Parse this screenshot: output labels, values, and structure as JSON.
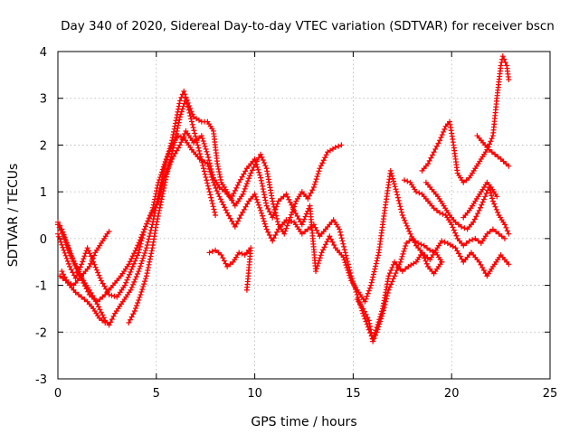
{
  "chart_data": {
    "type": "scatter",
    "title": "Day 340 of 2020, Sidereal Day-to-day VTEC variation (SDTVAR) for receiver bscn",
    "xlabel": "GPS time / hours",
    "ylabel": "SDTVAR / TECUs",
    "xlim": [
      0,
      25
    ],
    "ylim": [
      -3,
      4
    ],
    "xticks": [
      "0",
      "5",
      "10",
      "15",
      "20",
      "25"
    ],
    "yticks": [
      "-3",
      "-2",
      "-1",
      "0",
      "1",
      "2",
      "3",
      "4"
    ],
    "grid": true,
    "marker": "plus",
    "color": "#ff0000",
    "series": [
      {
        "points": [
          [
            0,
            0.35
          ],
          [
            0.2,
            0.2
          ],
          [
            0.5,
            -0.15
          ],
          [
            0.8,
            -0.5
          ],
          [
            1.0,
            -0.7
          ],
          [
            1.3,
            -0.9
          ],
          [
            1.6,
            -1.1
          ],
          [
            2.0,
            -1.4
          ],
          [
            2.4,
            -1.75
          ],
          [
            2.6,
            -1.85
          ],
          [
            2.9,
            -1.6
          ],
          [
            3.3,
            -1.35
          ],
          [
            3.7,
            -1.1
          ],
          [
            4.1,
            -0.7
          ],
          [
            4.5,
            -0.2
          ],
          [
            4.8,
            0.3
          ],
          [
            5.1,
            0.9
          ],
          [
            5.4,
            1.5
          ],
          [
            5.8,
            2.1
          ],
          [
            6.2,
            2.95
          ],
          [
            6.4,
            3.15
          ],
          [
            6.6,
            2.9
          ],
          [
            6.9,
            2.6
          ],
          [
            7.3,
            2.5
          ],
          [
            7.6,
            2.5
          ],
          [
            7.9,
            2.3
          ],
          [
            8.1,
            1.6
          ],
          [
            8.3,
            1.2
          ],
          [
            8.6,
            1.0
          ],
          [
            9.0,
            0.7
          ],
          [
            9.4,
            0.95
          ],
          [
            9.8,
            1.4
          ],
          [
            10.1,
            1.65
          ],
          [
            10.3,
            1.8
          ],
          [
            10.6,
            1.5
          ],
          [
            10.9,
            0.8
          ],
          [
            11.2,
            0.3
          ],
          [
            11.5,
            0.1
          ],
          [
            11.8,
            0.45
          ],
          [
            12.1,
            0.8
          ],
          [
            12.4,
            1.0
          ],
          [
            12.7,
            0.85
          ],
          [
            13.0,
            1.1
          ],
          [
            13.3,
            1.5
          ],
          [
            13.7,
            1.85
          ],
          [
            14.1,
            1.95
          ],
          [
            14.4,
            2.0
          ]
        ]
      },
      {
        "points": [
          [
            0,
            0.3
          ],
          [
            0.3,
            0.05
          ],
          [
            0.6,
            -0.3
          ],
          [
            1.0,
            -0.65
          ],
          [
            1.3,
            -0.95
          ],
          [
            1.6,
            -1.2
          ],
          [
            2.0,
            -1.35
          ],
          [
            2.4,
            -1.2
          ],
          [
            2.8,
            -1.0
          ],
          [
            3.2,
            -0.8
          ],
          [
            3.6,
            -0.55
          ],
          [
            4.0,
            -0.2
          ],
          [
            4.4,
            0.2
          ],
          [
            4.8,
            0.6
          ],
          [
            5.1,
            1.2
          ],
          [
            5.5,
            1.7
          ],
          [
            5.8,
            2.0
          ],
          [
            6.1,
            2.2
          ],
          [
            6.4,
            2.15
          ],
          [
            6.8,
            1.9
          ],
          [
            7.2,
            1.7
          ],
          [
            7.6,
            1.6
          ],
          [
            7.9,
            1.2
          ],
          [
            8.2,
            0.9
          ],
          [
            8.6,
            0.55
          ],
          [
            9.0,
            0.25
          ],
          [
            9.3,
            0.5
          ],
          [
            9.7,
            0.8
          ],
          [
            10.0,
            0.95
          ],
          [
            10.3,
            0.6
          ],
          [
            10.6,
            0.2
          ],
          [
            10.9,
            -0.05
          ],
          [
            11.2,
            0.2
          ],
          [
            11.6,
            0.4
          ],
          [
            12.0,
            0.35
          ],
          [
            12.4,
            0.1
          ],
          [
            12.7,
            0.2
          ],
          [
            13.0,
            0.3
          ],
          [
            13.3,
            0.05
          ],
          [
            13.6,
            0.2
          ],
          [
            14.0,
            0.4
          ],
          [
            14.3,
            0.2
          ],
          [
            14.6,
            -0.3
          ],
          [
            14.9,
            -0.8
          ],
          [
            15.2,
            -1.2
          ],
          [
            15.5,
            -1.6
          ],
          [
            15.8,
            -1.95
          ],
          [
            16.0,
            -2.15
          ],
          [
            16.2,
            -1.9
          ],
          [
            16.5,
            -1.5
          ],
          [
            16.8,
            -0.8
          ],
          [
            17.1,
            -0.5
          ],
          [
            17.5,
            -0.7
          ],
          [
            17.8,
            -0.6
          ],
          [
            18.2,
            -0.5
          ],
          [
            18.5,
            -0.3
          ],
          [
            18.9,
            -0.45
          ],
          [
            19.2,
            -0.25
          ],
          [
            19.5,
            -0.05
          ],
          [
            19.8,
            -0.1
          ],
          [
            20.2,
            -0.2
          ],
          [
            20.6,
            -0.5
          ],
          [
            21.0,
            -0.3
          ],
          [
            21.4,
            -0.5
          ],
          [
            21.8,
            -0.8
          ],
          [
            22.1,
            -0.6
          ],
          [
            22.5,
            -0.35
          ],
          [
            22.9,
            -0.55
          ]
        ]
      },
      {
        "points": [
          [
            0,
            0.1
          ],
          [
            0.3,
            -0.25
          ],
          [
            0.6,
            -0.6
          ],
          [
            0.9,
            -0.85
          ],
          [
            1.2,
            -0.55
          ],
          [
            1.5,
            -0.2
          ],
          [
            1.8,
            -0.5
          ],
          [
            2.2,
            -0.9
          ],
          [
            2.6,
            -1.2
          ],
          [
            3.0,
            -1.25
          ],
          [
            3.4,
            -1.0
          ],
          [
            3.8,
            -0.6
          ],
          [
            4.1,
            -0.3
          ],
          [
            4.4,
            0.2
          ],
          [
            4.7,
            0.5
          ],
          [
            5.1,
            0.8
          ],
          [
            5.4,
            1.3
          ],
          [
            5.8,
            1.7
          ],
          [
            6.2,
            2.0
          ],
          [
            6.5,
            2.3
          ],
          [
            6.9,
            2.05
          ],
          [
            7.3,
            2.2
          ],
          [
            7.6,
            1.8
          ],
          [
            7.9,
            1.3
          ],
          [
            8.2,
            1.1
          ],
          [
            8.5,
            1.0
          ],
          [
            8.8,
            0.85
          ],
          [
            9.2,
            1.2
          ],
          [
            9.6,
            1.5
          ],
          [
            10.0,
            1.7
          ],
          [
            10.3,
            1.3
          ],
          [
            10.6,
            0.7
          ],
          [
            10.9,
            0.45
          ],
          [
            11.2,
            0.8
          ],
          [
            11.6,
            0.95
          ],
          [
            12.0,
            0.6
          ],
          [
            12.4,
            0.3
          ],
          [
            12.8,
            0.7
          ],
          [
            13.1,
            -0.7
          ],
          [
            13.4,
            -0.3
          ],
          [
            13.8,
            0.05
          ],
          [
            14.1,
            -0.2
          ],
          [
            14.5,
            -0.4
          ],
          [
            14.9,
            -0.9
          ],
          [
            15.2,
            -1.1
          ],
          [
            15.6,
            -1.35
          ],
          [
            15.9,
            -1.0
          ],
          [
            16.3,
            -0.3
          ],
          [
            16.6,
            0.6
          ],
          [
            16.9,
            1.45
          ],
          [
            17.2,
            1.0
          ],
          [
            17.5,
            0.5
          ],
          [
            17.9,
            0.1
          ],
          [
            18.2,
            -0.15
          ],
          [
            18.5,
            -0.3
          ],
          [
            18.8,
            -0.6
          ],
          [
            19.1,
            -0.75
          ],
          [
            19.5,
            -0.5
          ]
        ]
      },
      {
        "points": [
          [
            0.1,
            -0.8
          ],
          [
            0.4,
            -0.9
          ],
          [
            0.8,
            -1.0
          ],
          [
            1.2,
            -0.8
          ],
          [
            1.6,
            -0.6
          ],
          [
            1.9,
            -0.3
          ],
          [
            2.2,
            -0.1
          ],
          [
            2.5,
            0.1
          ],
          [
            2.6,
            0.15
          ]
        ]
      },
      {
        "points": [
          [
            0.2,
            -0.7
          ],
          [
            0.5,
            -0.95
          ],
          [
            0.9,
            -1.15
          ],
          [
            1.2,
            -1.25
          ],
          [
            1.5,
            -1.35
          ],
          [
            1.8,
            -1.5
          ],
          [
            2.1,
            -1.7
          ],
          [
            2.4,
            -1.8
          ]
        ]
      },
      {
        "points": [
          [
            3.6,
            -1.8
          ],
          [
            3.9,
            -1.55
          ],
          [
            4.2,
            -1.2
          ],
          [
            4.5,
            -0.8
          ],
          [
            4.8,
            -0.2
          ],
          [
            5.0,
            0.3
          ],
          [
            5.3,
            0.9
          ],
          [
            5.6,
            1.5
          ],
          [
            5.9,
            2.0
          ],
          [
            6.2,
            2.6
          ],
          [
            6.5,
            3.0
          ],
          [
            6.8,
            2.5
          ],
          [
            7.1,
            2.0
          ],
          [
            7.4,
            1.5
          ],
          [
            7.7,
            1.0
          ],
          [
            8.0,
            0.5
          ]
        ]
      },
      {
        "points": [
          [
            7.7,
            -0.3
          ],
          [
            8.0,
            -0.25
          ],
          [
            8.3,
            -0.35
          ],
          [
            8.6,
            -0.6
          ],
          [
            8.9,
            -0.5
          ],
          [
            9.2,
            -0.3
          ],
          [
            9.5,
            -0.35
          ],
          [
            9.8,
            -0.2
          ],
          [
            9.6,
            -1.1
          ]
        ]
      },
      {
        "points": [
          [
            15.2,
            -1.3
          ],
          [
            15.5,
            -1.5
          ],
          [
            15.8,
            -1.75
          ],
          [
            16.0,
            -2.2
          ],
          [
            16.2,
            -2.0
          ],
          [
            16.5,
            -1.6
          ],
          [
            16.8,
            -1.1
          ],
          [
            17.1,
            -0.8
          ],
          [
            17.4,
            -0.5
          ],
          [
            17.7,
            -0.1
          ],
          [
            18.0,
            0.0
          ],
          [
            18.3,
            -0.1
          ],
          [
            18.6,
            -0.15
          ],
          [
            18.9,
            -0.25
          ],
          [
            19.2,
            -0.3
          ],
          [
            19.5,
            -0.5
          ]
        ]
      },
      {
        "points": [
          [
            17.6,
            1.25
          ],
          [
            17.9,
            1.2
          ],
          [
            18.2,
            1.0
          ],
          [
            18.5,
            0.95
          ],
          [
            18.8,
            0.8
          ],
          [
            19.1,
            0.65
          ],
          [
            19.4,
            0.55
          ],
          [
            19.7,
            0.5
          ],
          [
            20.0,
            0.3
          ],
          [
            20.3,
            0.0
          ],
          [
            20.6,
            -0.15
          ],
          [
            20.9,
            -0.05
          ],
          [
            21.2,
            0.0
          ],
          [
            21.5,
            -0.1
          ],
          [
            21.8,
            0.1
          ],
          [
            22.1,
            0.2
          ],
          [
            22.4,
            0.1
          ],
          [
            22.7,
            0.0
          ]
        ]
      },
      {
        "points": [
          [
            18.5,
            1.45
          ],
          [
            18.8,
            1.6
          ],
          [
            19.1,
            1.85
          ],
          [
            19.4,
            2.1
          ],
          [
            19.7,
            2.4
          ],
          [
            19.9,
            2.5
          ],
          [
            20.1,
            2.0
          ],
          [
            20.3,
            1.4
          ],
          [
            20.6,
            1.2
          ],
          [
            20.9,
            1.3
          ],
          [
            21.2,
            1.5
          ],
          [
            21.5,
            1.7
          ],
          [
            21.8,
            1.9
          ],
          [
            22.1,
            2.2
          ],
          [
            22.3,
            3.0
          ],
          [
            22.5,
            3.7
          ],
          [
            22.6,
            3.9
          ],
          [
            22.8,
            3.7
          ],
          [
            22.9,
            3.4
          ]
        ]
      },
      {
        "points": [
          [
            18.7,
            1.2
          ],
          [
            19.0,
            1.05
          ],
          [
            19.3,
            0.9
          ],
          [
            19.6,
            0.7
          ],
          [
            19.9,
            0.5
          ],
          [
            20.2,
            0.35
          ],
          [
            20.5,
            0.25
          ],
          [
            20.8,
            0.2
          ],
          [
            21.1,
            0.35
          ],
          [
            21.4,
            0.6
          ],
          [
            21.7,
            0.9
          ],
          [
            21.9,
            1.1
          ],
          [
            22.1,
            0.8
          ],
          [
            22.4,
            0.5
          ],
          [
            22.7,
            0.3
          ],
          [
            22.9,
            0.1
          ]
        ]
      },
      {
        "points": [
          [
            21.3,
            2.2
          ],
          [
            21.6,
            2.05
          ],
          [
            21.9,
            1.9
          ],
          [
            22.2,
            1.8
          ],
          [
            22.5,
            1.7
          ],
          [
            22.9,
            1.55
          ]
        ]
      },
      {
        "points": [
          [
            20.6,
            0.45
          ],
          [
            20.9,
            0.6
          ],
          [
            21.2,
            0.8
          ],
          [
            21.5,
            1.0
          ],
          [
            21.8,
            1.2
          ],
          [
            22.0,
            1.1
          ],
          [
            22.3,
            0.9
          ]
        ]
      }
    ]
  }
}
